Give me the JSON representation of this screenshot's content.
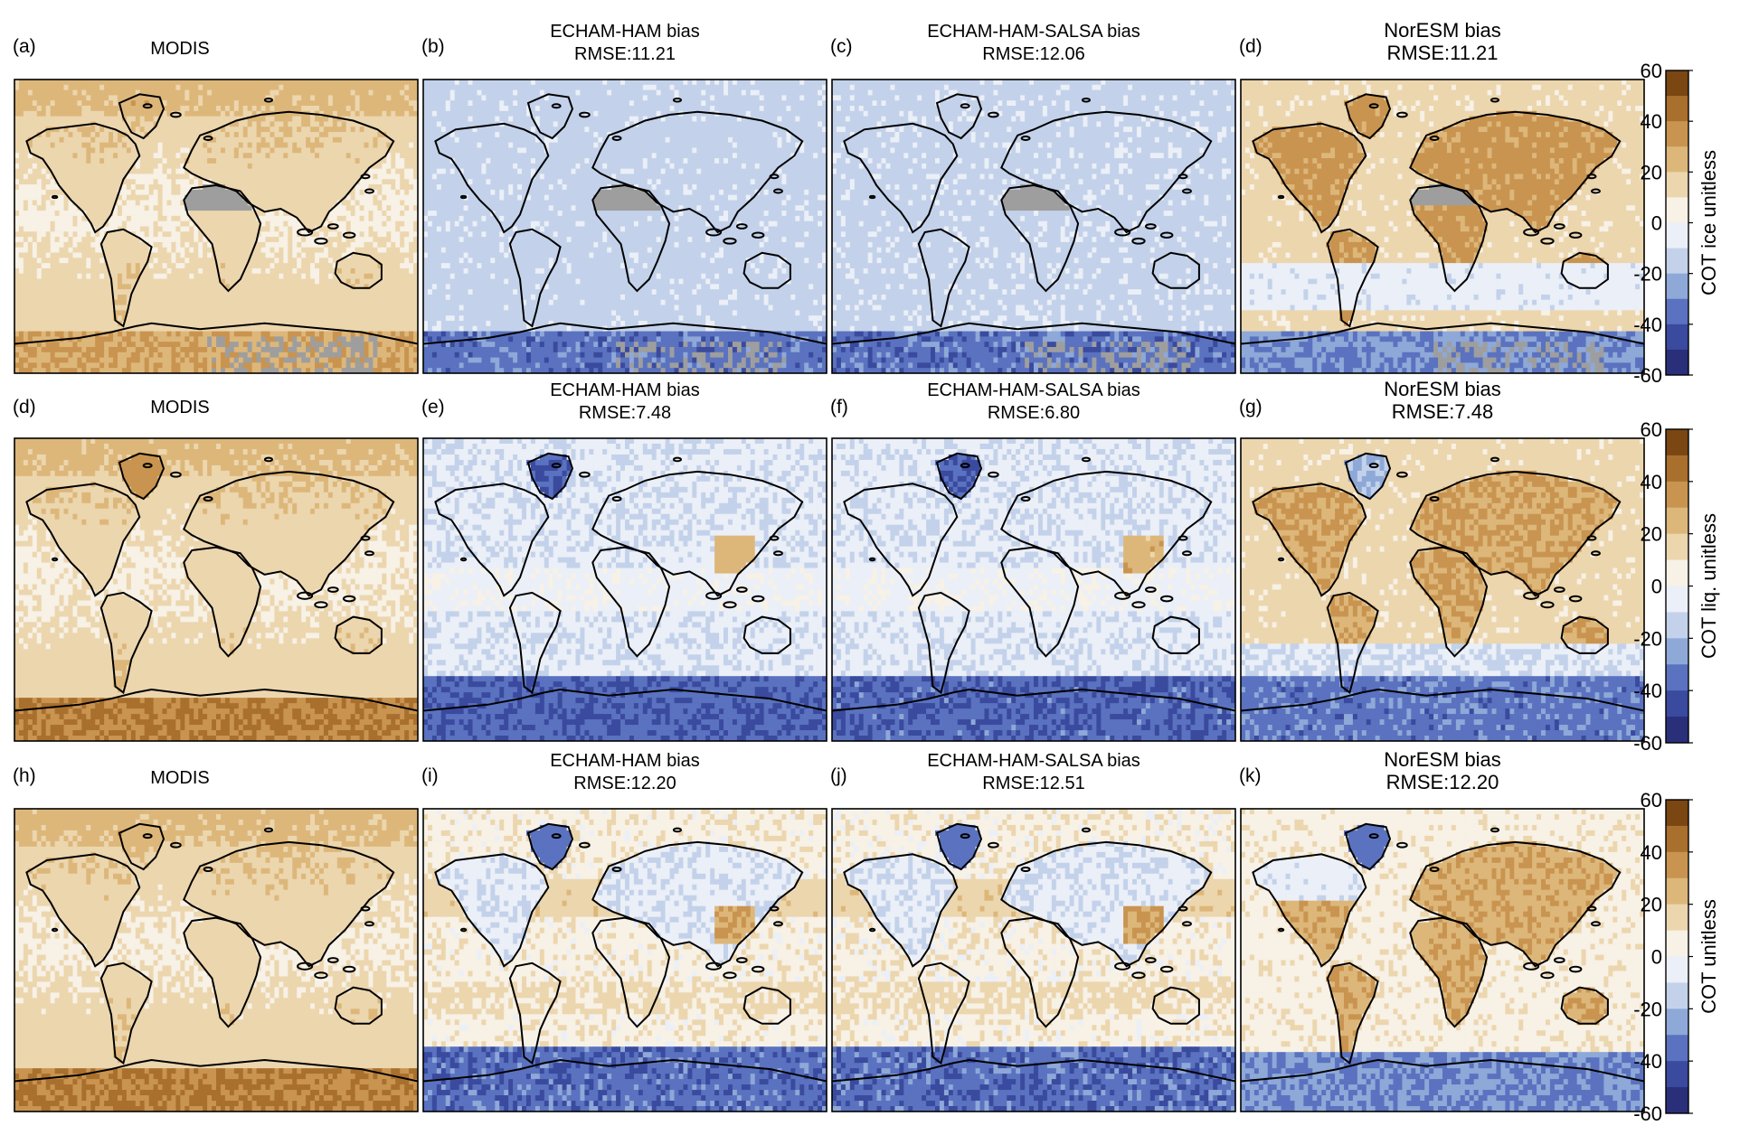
{
  "rows": [
    {
      "colorbar_label": "COT ice unitless",
      "panels": [
        {
          "letter": "(a)",
          "title_line1": "MODIS",
          "title_line2": "",
          "kind": "modis"
        },
        {
          "letter": "(b)",
          "title_line1": "ECHAM-HAM bias",
          "title_line2": "RMSE:11.21",
          "kind": "bias-echam"
        },
        {
          "letter": "(c)",
          "title_line1": "ECHAM-HAM-SALSA bias",
          "title_line2": "RMSE:12.06",
          "kind": "bias-salsa"
        },
        {
          "letter": "(d)",
          "title_line1": "NorESM bias",
          "title_line2": "RMSE:11.21",
          "kind": "bias-noresm"
        }
      ]
    },
    {
      "colorbar_label": "COT liq. unitless",
      "panels": [
        {
          "letter": "(d)",
          "title_line1": "MODIS",
          "title_line2": "",
          "kind": "modis"
        },
        {
          "letter": "(e)",
          "title_line1": "ECHAM-HAM bias",
          "title_line2": "RMSE:7.48",
          "kind": "bias-echam"
        },
        {
          "letter": "(f)",
          "title_line1": "ECHAM-HAM-SALSA bias",
          "title_line2": "RMSE:6.80",
          "kind": "bias-salsa"
        },
        {
          "letter": "(g)",
          "title_line1": "NorESM bias",
          "title_line2": "RMSE:7.48",
          "kind": "bias-noresm"
        }
      ]
    },
    {
      "colorbar_label": "COT unitless",
      "panels": [
        {
          "letter": "(h)",
          "title_line1": "MODIS",
          "title_line2": "",
          "kind": "modis"
        },
        {
          "letter": "(i)",
          "title_line1": "ECHAM-HAM bias",
          "title_line2": "RMSE:12.20",
          "kind": "bias-echam"
        },
        {
          "letter": "(j)",
          "title_line1": "ECHAM-HAM-SALSA bias",
          "title_line2": "RMSE:12.51",
          "kind": "bias-salsa"
        },
        {
          "letter": "(k)",
          "title_line1": "NorESM bias",
          "title_line2": "RMSE:12.20",
          "kind": "bias-noresm"
        }
      ]
    }
  ],
  "colorbar": {
    "ticks": [
      60,
      40,
      20,
      0,
      -20,
      -40,
      -60
    ],
    "range": [
      -60,
      60
    ],
    "colors": [
      "#2a2f7a",
      "#3a4a9e",
      "#5a72bf",
      "#8ea8d8",
      "#c3d2ea",
      "#ebeff7",
      "#f7f1e6",
      "#ecd6ae",
      "#ddb77a",
      "#c99450",
      "#a96f2d",
      "#7a4612"
    ]
  },
  "colors": {
    "land_fill": "none",
    "coast": "#000000",
    "missing": "#9e9e9e"
  }
}
